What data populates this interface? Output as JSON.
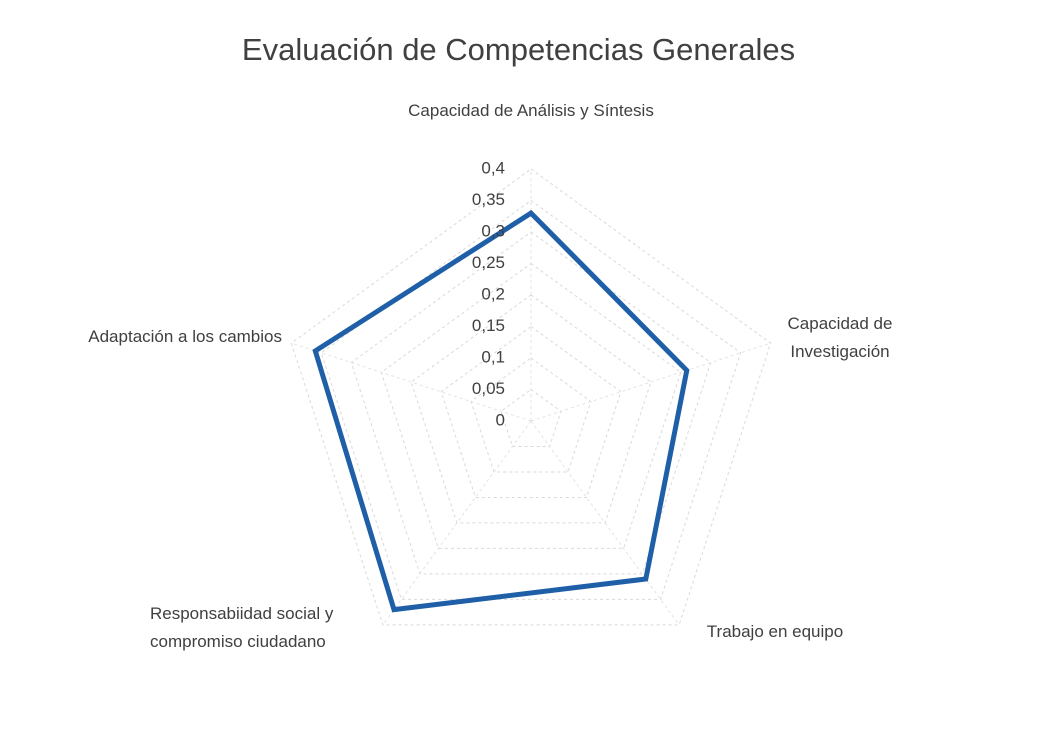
{
  "chart_data": {
    "type": "radar",
    "title": "Evaluación de Competencias Generales",
    "categories": [
      "Capacidad de Análisis y Síntesis",
      "Capacidad de Investigación",
      "Trabajo en equipo",
      "Responsabiidad social y compromiso ciudadano",
      "Adaptación a los cambios"
    ],
    "values": [
      0.33,
      0.26,
      0.31,
      0.37,
      0.36
    ],
    "color": "#1f5fa8",
    "ylim": [
      0,
      0.4
    ],
    "yticks": [
      0,
      {
        "value": 0.05,
        "label": "0,05"
      },
      {
        "value": 0.1,
        "label": "0,1"
      },
      {
        "value": 0.15,
        "label": "0,15"
      },
      {
        "value": 0.2,
        "label": "0,2"
      },
      {
        "value": 0.25,
        "label": "0,25"
      },
      {
        "value": 0.3,
        "label": "0,3"
      },
      {
        "value": 0.35,
        "label": "0,35"
      },
      {
        "value": 0.4,
        "label": "0,4"
      }
    ],
    "grid": true
  }
}
